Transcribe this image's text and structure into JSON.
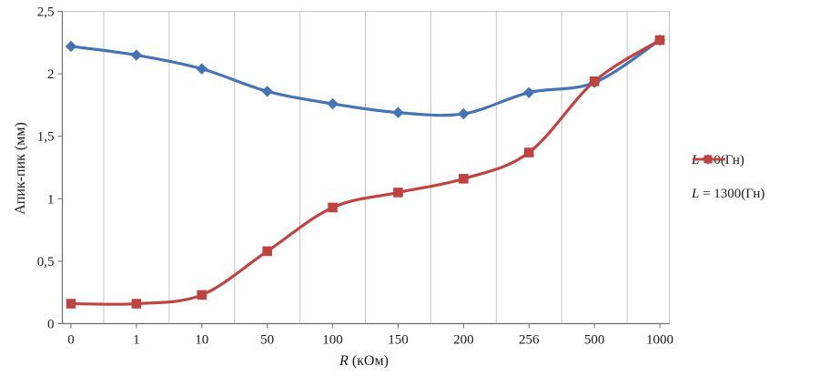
{
  "chart_data": {
    "type": "line",
    "categories": [
      "0",
      "1",
      "10",
      "50",
      "100",
      "150",
      "200",
      "256",
      "500",
      "1000"
    ],
    "series": [
      {
        "name": "L = 0(Гн)",
        "color": "#4574b4",
        "marker": "diamond",
        "values": [
          2.22,
          2.15,
          2.04,
          1.86,
          1.76,
          1.69,
          1.68,
          1.85,
          1.93,
          2.27
        ]
      },
      {
        "name": "L = 1300(Гн)",
        "color": "#bf4440",
        "marker": "square",
        "values": [
          0.16,
          0.16,
          0.23,
          0.58,
          0.93,
          1.05,
          1.16,
          1.37,
          1.94,
          2.27
        ]
      }
    ],
    "title": "",
    "xlabel": "R (кОм)",
    "ylabel": "Апик-пик (мм)",
    "ylim": [
      0,
      2.5
    ],
    "y_ticks": [
      "0",
      "0,5",
      "1",
      "1,5",
      "2",
      "2,5"
    ],
    "y_tick_values": [
      0,
      0.5,
      1,
      1.5,
      2,
      2.5
    ],
    "grid": "vertical",
    "legend_position": "right",
    "grid_color": "#c6c6c6",
    "axis_color": "#6e6e6e",
    "tick_label_color": "#1a1a1a"
  }
}
